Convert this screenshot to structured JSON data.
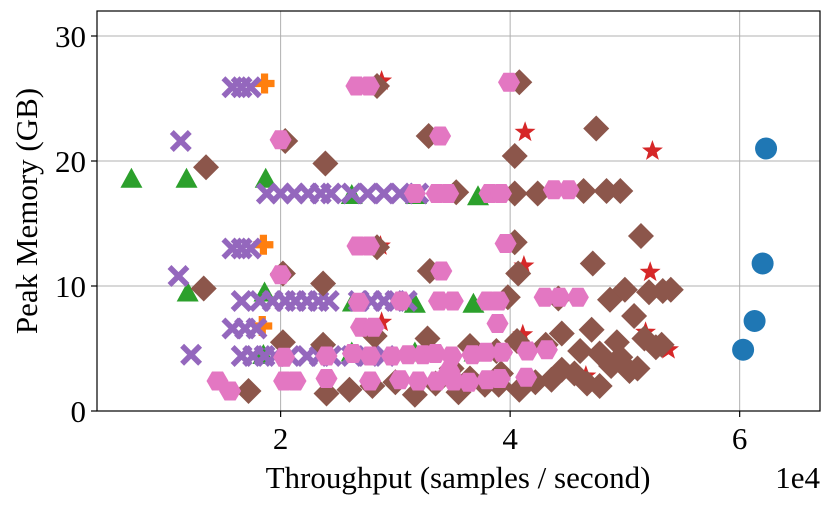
{
  "chart_data": {
    "type": "scatter",
    "xlabel": "Throughput (samples / second)",
    "ylabel": "Peak Memory (GB)",
    "x_scale_label": "1e4",
    "xlim": [
      4000,
      67000
    ],
    "ylim": [
      0,
      32
    ],
    "x_ticks": [
      {
        "v": 20000,
        "label": "2"
      },
      {
        "v": 40000,
        "label": "4"
      },
      {
        "v": 60000,
        "label": "6"
      }
    ],
    "y_ticks": [
      {
        "v": 0,
        "label": "0"
      },
      {
        "v": 10,
        "label": "10"
      },
      {
        "v": 20,
        "label": "20"
      },
      {
        "v": 30,
        "label": "30"
      }
    ],
    "grid": true,
    "legend": "none",
    "series": [
      {
        "marker": "circle",
        "color": "#1f77b4",
        "points": [
          [
            62300,
            21.0
          ],
          [
            62000,
            11.8
          ],
          [
            61300,
            7.2
          ],
          [
            60300,
            4.9
          ]
        ]
      },
      {
        "marker": "plus",
        "color": "#ff7f0e",
        "points": [
          [
            18600,
            26.2
          ],
          [
            18500,
            13.3
          ],
          [
            18400,
            6.8
          ]
        ]
      },
      {
        "marker": "triangle",
        "color": "#2ca02c",
        "points": [
          [
            7000,
            18.5
          ],
          [
            11800,
            18.5
          ],
          [
            11900,
            9.4
          ],
          [
            18700,
            18.5
          ],
          [
            18600,
            9.4
          ],
          [
            26200,
            17.2
          ],
          [
            31800,
            17.2
          ],
          [
            37200,
            17.1
          ],
          [
            26300,
            8.6
          ],
          [
            31700,
            8.5
          ],
          [
            36800,
            8.5
          ],
          [
            26200,
            4.6
          ],
          [
            31700,
            4.6
          ],
          [
            36900,
            4.6
          ],
          [
            18500,
            4.4
          ]
        ]
      },
      {
        "marker": "star",
        "color": "#d62728",
        "points": [
          [
            28800,
            26.4
          ],
          [
            41300,
            22.3
          ],
          [
            52400,
            20.8
          ],
          [
            28700,
            13.2
          ],
          [
            41200,
            11.6
          ],
          [
            52200,
            11.1
          ],
          [
            28800,
            7.1
          ],
          [
            41100,
            6.1
          ],
          [
            51800,
            6.3
          ],
          [
            34900,
            3.2
          ],
          [
            46600,
            2.8
          ],
          [
            53800,
            4.9
          ]
        ]
      },
      {
        "marker": "x",
        "color": "#9467bd",
        "points": [
          [
            15800,
            25.9
          ],
          [
            16600,
            25.9
          ],
          [
            17400,
            25.9
          ],
          [
            11300,
            21.6
          ],
          [
            18800,
            17.4
          ],
          [
            20000,
            17.4
          ],
          [
            21200,
            17.4
          ],
          [
            22400,
            17.4
          ],
          [
            23500,
            17.4
          ],
          [
            24400,
            17.4
          ],
          [
            26200,
            17.4
          ],
          [
            27600,
            17.4
          ],
          [
            29000,
            17.4
          ],
          [
            30400,
            17.4
          ],
          [
            32000,
            17.4
          ],
          [
            15800,
            13.0
          ],
          [
            16600,
            13.0
          ],
          [
            17400,
            13.0
          ],
          [
            11100,
            10.8
          ],
          [
            16600,
            8.8
          ],
          [
            18200,
            8.8
          ],
          [
            19300,
            8.8
          ],
          [
            20400,
            8.8
          ],
          [
            21300,
            8.8
          ],
          [
            22300,
            8.8
          ],
          [
            23300,
            8.8
          ],
          [
            24200,
            8.8
          ],
          [
            26800,
            8.8
          ],
          [
            27900,
            8.8
          ],
          [
            29000,
            8.8
          ],
          [
            30000,
            8.8
          ],
          [
            31000,
            8.8
          ],
          [
            15800,
            6.6
          ],
          [
            16900,
            6.6
          ],
          [
            17900,
            6.6
          ],
          [
            16600,
            4.4
          ],
          [
            17600,
            4.4
          ],
          [
            18600,
            4.4
          ],
          [
            19500,
            4.4
          ],
          [
            20800,
            4.4
          ],
          [
            22300,
            4.4
          ],
          [
            23400,
            4.4
          ],
          [
            24400,
            4.4
          ],
          [
            26200,
            4.4
          ],
          [
            27600,
            4.4
          ],
          [
            29100,
            4.4
          ],
          [
            12200,
            4.5
          ]
        ]
      },
      {
        "marker": "diamond",
        "color": "#8c564b",
        "points": [
          [
            40800,
            26.3
          ],
          [
            28400,
            26.0
          ],
          [
            20400,
            21.6
          ],
          [
            32900,
            22.0
          ],
          [
            47500,
            22.6
          ],
          [
            13500,
            19.5
          ],
          [
            23900,
            19.8
          ],
          [
            40400,
            20.4
          ],
          [
            35300,
            17.5
          ],
          [
            40400,
            17.4
          ],
          [
            42400,
            17.4
          ],
          [
            46400,
            17.6
          ],
          [
            48400,
            17.6
          ],
          [
            49600,
            17.6
          ],
          [
            28400,
            13.1
          ],
          [
            40400,
            13.5
          ],
          [
            13300,
            9.8
          ],
          [
            20200,
            11.0
          ],
          [
            23700,
            10.2
          ],
          [
            33000,
            11.2
          ],
          [
            39800,
            9.1
          ],
          [
            40700,
            11.0
          ],
          [
            44200,
            9.0
          ],
          [
            47200,
            11.8
          ],
          [
            48700,
            8.9
          ],
          [
            50000,
            9.7
          ],
          [
            51400,
            14.0
          ],
          [
            52100,
            9.5
          ],
          [
            53300,
            9.6
          ],
          [
            54000,
            9.7
          ],
          [
            20200,
            5.5
          ],
          [
            23700,
            5.3
          ],
          [
            28200,
            6.0
          ],
          [
            32800,
            5.8
          ],
          [
            36500,
            5.2
          ],
          [
            38800,
            4.8
          ],
          [
            40600,
            5.6
          ],
          [
            43100,
            5.3
          ],
          [
            44500,
            6.2
          ],
          [
            47100,
            6.5
          ],
          [
            47800,
            4.6
          ],
          [
            49300,
            5.5
          ],
          [
            50800,
            7.6
          ],
          [
            51700,
            5.8
          ],
          [
            52700,
            5.1
          ],
          [
            53200,
            5.3
          ],
          [
            17200,
            1.6
          ],
          [
            24000,
            1.4
          ],
          [
            26000,
            1.7
          ],
          [
            28000,
            2.0
          ],
          [
            30000,
            2.3
          ],
          [
            31700,
            1.3
          ],
          [
            33500,
            2.2
          ],
          [
            35500,
            1.5
          ],
          [
            36500,
            2.6
          ],
          [
            37800,
            2.1
          ],
          [
            39200,
            3.0
          ],
          [
            40800,
            1.7
          ],
          [
            42200,
            2.3
          ],
          [
            43600,
            2.5
          ],
          [
            44500,
            3.3
          ],
          [
            45600,
            3.0
          ],
          [
            46700,
            2.2
          ],
          [
            47800,
            2.0
          ],
          [
            48800,
            3.6
          ],
          [
            49600,
            4.3
          ],
          [
            50400,
            3.2
          ],
          [
            51100,
            3.4
          ],
          [
            46100,
            4.8
          ],
          [
            34900,
            3.4
          ],
          [
            39000,
            2.1
          ]
        ]
      },
      {
        "marker": "hexagon",
        "color": "#e377c2",
        "points": [
          [
            39900,
            26.3
          ],
          [
            26600,
            26.0
          ],
          [
            27700,
            26.0
          ],
          [
            20000,
            21.7
          ],
          [
            33900,
            22.0
          ],
          [
            31700,
            17.4
          ],
          [
            33600,
            17.4
          ],
          [
            34600,
            17.4
          ],
          [
            38200,
            17.4
          ],
          [
            39200,
            17.4
          ],
          [
            43800,
            17.7
          ],
          [
            45100,
            17.7
          ],
          [
            26700,
            13.2
          ],
          [
            27700,
            13.2
          ],
          [
            39600,
            13.4
          ],
          [
            20000,
            10.9
          ],
          [
            34000,
            11.2
          ],
          [
            26800,
            8.7
          ],
          [
            30500,
            8.8
          ],
          [
            33800,
            8.8
          ],
          [
            35000,
            8.8
          ],
          [
            38000,
            8.8
          ],
          [
            39000,
            8.8
          ],
          [
            43000,
            9.1
          ],
          [
            44300,
            9.1
          ],
          [
            45900,
            9.1
          ],
          [
            27000,
            6.7
          ],
          [
            28100,
            6.7
          ],
          [
            38900,
            7.0
          ],
          [
            20300,
            4.3
          ],
          [
            24000,
            4.4
          ],
          [
            26300,
            4.6
          ],
          [
            27800,
            4.4
          ],
          [
            29700,
            4.4
          ],
          [
            31100,
            4.5
          ],
          [
            32400,
            4.5
          ],
          [
            33500,
            4.6
          ],
          [
            34900,
            4.4
          ],
          [
            36700,
            4.5
          ],
          [
            37900,
            4.7
          ],
          [
            39300,
            4.7
          ],
          [
            41500,
            4.8
          ],
          [
            43200,
            4.9
          ],
          [
            20300,
            2.4
          ],
          [
            21300,
            2.4
          ],
          [
            24000,
            2.6
          ],
          [
            27800,
            2.4
          ],
          [
            30400,
            2.5
          ],
          [
            32000,
            2.4
          ],
          [
            33600,
            2.4
          ],
          [
            35100,
            2.4
          ],
          [
            36400,
            2.3
          ],
          [
            38000,
            2.5
          ],
          [
            39100,
            2.6
          ],
          [
            41400,
            2.7
          ],
          [
            14500,
            2.4
          ],
          [
            15600,
            1.6
          ],
          [
            34700,
            3.2
          ]
        ]
      }
    ]
  }
}
